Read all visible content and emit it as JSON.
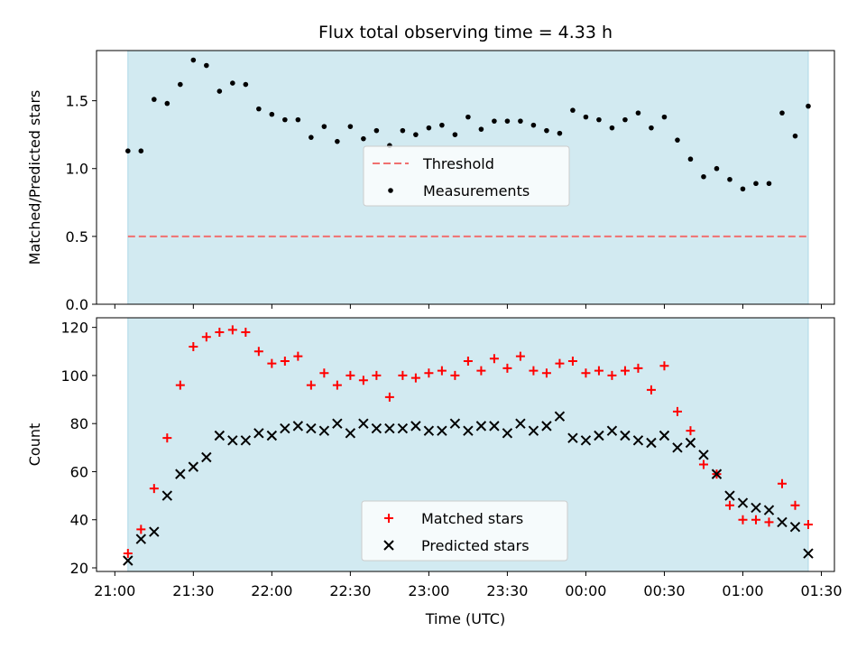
{
  "figure": {
    "title": "Flux total observing time = 4.33 h",
    "background": "#ffffff",
    "shade_color": "#add8e6"
  },
  "chart_data": [
    {
      "type": "scatter",
      "name": "ratio",
      "title": "Flux total observing time = 4.33 h",
      "ylabel": "Matched/Predicted stars",
      "xlabel": "",
      "xlim": [
        "20:53",
        "01:35"
      ],
      "ylim": [
        0.0,
        1.87
      ],
      "yticks": [
        0.0,
        0.5,
        1.0,
        1.5
      ],
      "ytick_labels": [
        "0.0",
        "0.5",
        "1.0",
        "1.5"
      ],
      "shade_range": [
        "21:05",
        "01:25"
      ],
      "legend_position": "center",
      "series": [
        {
          "name": "Threshold",
          "type": "line",
          "style": "dashed",
          "color": "#f07070",
          "x": [
            "21:05",
            "01:25"
          ],
          "y": [
            0.5,
            0.5
          ]
        },
        {
          "name": "Measurements",
          "type": "scatter",
          "marker": "dot",
          "color": "#000000",
          "x": [
            "21:05",
            "21:10",
            "21:15",
            "21:20",
            "21:25",
            "21:30",
            "21:35",
            "21:40",
            "21:45",
            "21:50",
            "21:55",
            "22:00",
            "22:05",
            "22:10",
            "22:15",
            "22:20",
            "22:25",
            "22:30",
            "22:35",
            "22:40",
            "22:45",
            "22:50",
            "22:55",
            "23:00",
            "23:05",
            "23:10",
            "23:15",
            "23:20",
            "23:25",
            "23:30",
            "23:35",
            "23:40",
            "23:45",
            "23:50",
            "23:55",
            "00:00",
            "00:05",
            "00:10",
            "00:15",
            "00:20",
            "00:25",
            "00:30",
            "00:35",
            "00:40",
            "00:45",
            "00:50",
            "00:55",
            "01:00",
            "01:05",
            "01:10",
            "01:15",
            "01:20",
            "01:25"
          ],
          "y": [
            1.13,
            1.13,
            1.51,
            1.48,
            1.62,
            1.8,
            1.76,
            1.57,
            1.63,
            1.62,
            1.44,
            1.4,
            1.36,
            1.36,
            1.23,
            1.31,
            1.2,
            1.31,
            1.22,
            1.28,
            1.17,
            1.28,
            1.25,
            1.3,
            1.32,
            1.25,
            1.38,
            1.29,
            1.35,
            1.35,
            1.35,
            1.32,
            1.28,
            1.26,
            1.43,
            1.38,
            1.36,
            1.3,
            1.36,
            1.41,
            1.3,
            1.38,
            1.21,
            1.07,
            0.94,
            1.0,
            0.92,
            0.85,
            0.89,
            0.89,
            1.41,
            1.24,
            1.46
          ]
        }
      ]
    },
    {
      "type": "scatter",
      "name": "counts",
      "ylabel": "Count",
      "xlabel": "Time (UTC)",
      "xlim": [
        "20:53",
        "01:35"
      ],
      "ylim": [
        18.5,
        124
      ],
      "yticks": [
        20,
        40,
        60,
        80,
        100,
        120
      ],
      "ytick_labels": [
        "20",
        "40",
        "60",
        "80",
        "100",
        "120"
      ],
      "xticks": [
        "21:00",
        "21:30",
        "22:00",
        "22:30",
        "23:00",
        "23:30",
        "00:00",
        "00:30",
        "01:00",
        "01:30"
      ],
      "xtick_labels": [
        "21:00",
        "21:30",
        "22:00",
        "22:30",
        "23:00",
        "23:30",
        "00:00",
        "00:30",
        "01:00",
        "01:30"
      ],
      "shade_range": [
        "21:05",
        "01:25"
      ],
      "legend_position": "lower center",
      "series": [
        {
          "name": "Matched stars",
          "marker": "plus",
          "color": "#ff0000",
          "x": [
            "21:05",
            "21:10",
            "21:15",
            "21:20",
            "21:25",
            "21:30",
            "21:35",
            "21:40",
            "21:45",
            "21:50",
            "21:55",
            "22:00",
            "22:05",
            "22:10",
            "22:15",
            "22:20",
            "22:25",
            "22:30",
            "22:35",
            "22:40",
            "22:45",
            "22:50",
            "22:55",
            "23:00",
            "23:05",
            "23:10",
            "23:15",
            "23:20",
            "23:25",
            "23:30",
            "23:35",
            "23:40",
            "23:45",
            "23:50",
            "23:55",
            "00:00",
            "00:05",
            "00:10",
            "00:15",
            "00:20",
            "00:25",
            "00:30",
            "00:35",
            "00:40",
            "00:45",
            "00:50",
            "00:55",
            "01:00",
            "01:05",
            "01:10",
            "01:15",
            "01:20",
            "01:25"
          ],
          "y": [
            26,
            36,
            53,
            74,
            96,
            112,
            116,
            118,
            119,
            118,
            110,
            105,
            106,
            108,
            96,
            101,
            96,
            100,
            98,
            100,
            91,
            100,
            99,
            101,
            102,
            100,
            106,
            102,
            107,
            103,
            108,
            102,
            101,
            105,
            106,
            101,
            102,
            100,
            102,
            103,
            94,
            104,
            85,
            77,
            63,
            59,
            46,
            40,
            40,
            39,
            55,
            46,
            38
          ]
        },
        {
          "name": "Predicted stars",
          "marker": "x",
          "color": "#000000",
          "x": [
            "21:05",
            "21:10",
            "21:15",
            "21:20",
            "21:25",
            "21:30",
            "21:35",
            "21:40",
            "21:45",
            "21:50",
            "21:55",
            "22:00",
            "22:05",
            "22:10",
            "22:15",
            "22:20",
            "22:25",
            "22:30",
            "22:35",
            "22:40",
            "22:45",
            "22:50",
            "22:55",
            "23:00",
            "23:05",
            "23:10",
            "23:15",
            "23:20",
            "23:25",
            "23:30",
            "23:35",
            "23:40",
            "23:45",
            "23:50",
            "23:55",
            "00:00",
            "00:05",
            "00:10",
            "00:15",
            "00:20",
            "00:25",
            "00:30",
            "00:35",
            "00:40",
            "00:45",
            "00:50",
            "00:55",
            "01:00",
            "01:05",
            "01:10",
            "01:15",
            "01:20",
            "01:25"
          ],
          "y": [
            23,
            32,
            35,
            50,
            59,
            62,
            66,
            75,
            73,
            73,
            76,
            75,
            78,
            79,
            78,
            77,
            80,
            76,
            80,
            78,
            78,
            78,
            79,
            77,
            77,
            80,
            77,
            79,
            79,
            76,
            80,
            77,
            79,
            83,
            74,
            73,
            75,
            77,
            75,
            73,
            72,
            75,
            70,
            72,
            67,
            59,
            50,
            47,
            45,
            44,
            39,
            37,
            26
          ]
        }
      ]
    }
  ]
}
